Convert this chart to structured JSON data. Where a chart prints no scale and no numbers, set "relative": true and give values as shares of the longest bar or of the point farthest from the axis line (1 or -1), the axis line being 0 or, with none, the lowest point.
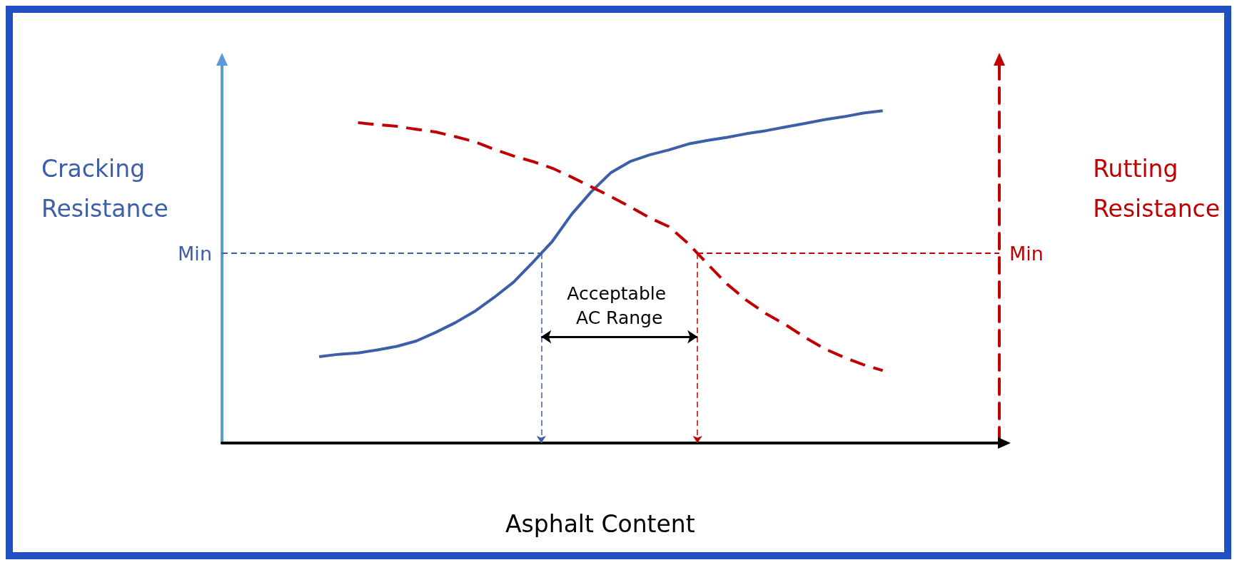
{
  "chart_data": {
    "type": "line",
    "relative": true,
    "xlabel": "Asphalt Content",
    "ylabel": "Cracking Resistance",
    "y2label": "Rutting Resistance",
    "categories": [
      null,
      null,
      null,
      null,
      null,
      null,
      null,
      null,
      null,
      null,
      null,
      null,
      null,
      null,
      null,
      null,
      null,
      null,
      null,
      null,
      null,
      null,
      null,
      null,
      null,
      null,
      null,
      null,
      null,
      null,
      null,
      null,
      null,
      null,
      null,
      null,
      null,
      null,
      null,
      null,
      null
    ],
    "series": [
      {
        "color": "#3c5fa8",
        "line_style": "solid",
        "values": [
          null,
          null,
          null,
          null,
          null,
          0.26,
          0.267,
          0.271,
          0.28,
          0.291,
          0.307,
          0.333,
          0.362,
          0.396,
          0.438,
          0.484,
          0.544,
          0.607,
          0.689,
          0.756,
          0.813,
          0.847,
          0.867,
          0.882,
          0.9,
          0.911,
          0.92,
          0.931,
          0.94,
          0.951,
          0.962,
          0.973,
          0.982,
          0.993,
          1.0,
          null,
          null,
          null,
          null,
          null,
          null
        ]
      },
      {
        "color": "#c00000",
        "line_style": "dashed",
        "values": [
          null,
          null,
          null,
          null,
          null,
          null,
          null,
          0.964,
          0.958,
          0.953,
          0.944,
          0.936,
          0.922,
          0.907,
          0.884,
          0.864,
          0.847,
          0.827,
          0.8,
          0.771,
          0.742,
          0.711,
          0.678,
          0.651,
          0.6,
          0.538,
          0.478,
          0.429,
          0.389,
          0.356,
          0.318,
          0.284,
          0.258,
          0.236,
          0.218,
          null,
          null,
          null,
          null,
          null,
          null
        ]
      }
    ],
    "ref_lines": [
      {
        "axis": "y",
        "value": 0.571,
        "label": "Min",
        "color": "#3c5fa8",
        "line_style": "dashed"
      },
      {
        "axis": "y",
        "value": 0.571,
        "label": "Min",
        "color": "#c00000",
        "line_style": "dashed"
      }
    ],
    "annotations": [
      "Acceptable AC Range"
    ],
    "marker": "none",
    "grid": false
  }
}
